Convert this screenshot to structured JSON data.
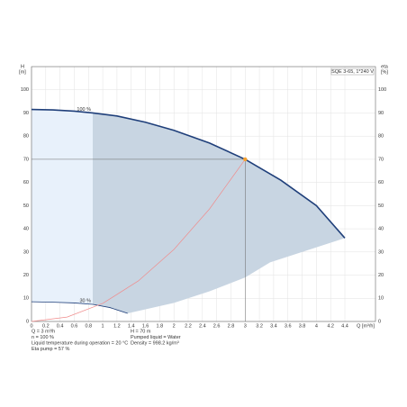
{
  "chart_data": {
    "type": "line",
    "product_label": "SQE 3-65, 1*240 V",
    "y_axis_label": "H",
    "y_axis_unit": "[m]",
    "y2_axis_label": "eta",
    "y2_axis_unit": "[%]",
    "x_axis_label": "Q [m³/h]",
    "xlim": [
      0,
      4.83
    ],
    "xticks": [
      0,
      0.2,
      0.4,
      0.6,
      0.8,
      1.0,
      1.2,
      1.4,
      1.6,
      1.8,
      2.0,
      2.2,
      2.4,
      2.6,
      2.8,
      3.0,
      3.2,
      3.4,
      3.6,
      3.8,
      4.0,
      4.2,
      4.4
    ],
    "ylim": [
      0,
      110
    ],
    "yticks": [
      0,
      10,
      20,
      30,
      40,
      50,
      60,
      70,
      80,
      90,
      100
    ],
    "y2lim": [
      0,
      110
    ],
    "y2ticks": [
      0,
      10,
      20,
      30,
      40,
      50,
      60,
      70,
      80,
      90,
      100
    ],
    "grid": true,
    "series": [
      {
        "name": "100 %",
        "color": "#1f3f7a",
        "x": [
          0,
          0.3,
          0.6,
          0.86,
          1.2,
          1.6,
          2,
          2.5,
          3,
          3.5,
          4,
          4.4
        ],
        "values": [
          91.5,
          91.3,
          90.8,
          90,
          88.7,
          86,
          82.5,
          77,
          70,
          61,
          50,
          36
        ]
      },
      {
        "name": "30 %",
        "color": "#1f3f7a",
        "x": [
          0,
          0.3,
          0.6,
          0.86,
          1.1,
          1.35
        ],
        "values": [
          8.5,
          8.3,
          8,
          7.4,
          6,
          3.5
        ]
      }
    ],
    "boundary": {
      "x": [
        1.35,
        2,
        2.5,
        3,
        3.35,
        4.4
      ],
      "values": [
        3.5,
        8,
        13,
        19,
        25.5,
        36
      ]
    },
    "system_curve": {
      "color": "#f08c8c",
      "x": [
        0,
        0.5,
        1,
        1.5,
        2,
        2.5,
        3
      ],
      "values": [
        0,
        1.9,
        7.8,
        17.5,
        31.1,
        48.6,
        70
      ]
    },
    "operating_point": {
      "x": 3,
      "y": 70,
      "color": "#f5a030"
    },
    "split_x": 0.86,
    "info_left": [
      "Q = 3 m³/h",
      "n = 100 %",
      "Liquid temperature during operation = 20 °C",
      "Eta pump = 57 %"
    ],
    "info_right": [
      "H = 70 m",
      "Pumped liquid = Water",
      "Density = 998.2 kg/m³"
    ]
  }
}
